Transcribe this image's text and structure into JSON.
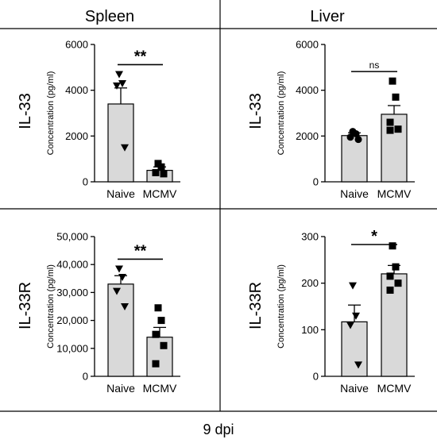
{
  "figure": {
    "columns": [
      "Spleen",
      "Liver"
    ],
    "rows": [
      "IL-33",
      "IL-33R"
    ],
    "footer": "9 dpi",
    "colors": {
      "bar": "#d9d9d9",
      "ink": "#000000"
    }
  },
  "chart_data": [
    {
      "type": "bar",
      "row_label": "IL-33",
      "column_label": "Spleen",
      "ylabel": "Concentration (pg/ml)",
      "categories": [
        "Naive",
        "MCMV"
      ],
      "values": [
        3400,
        500
      ],
      "sem": [
        700,
        150
      ],
      "points": [
        [
          4700,
          4300,
          4200,
          1500
        ],
        [
          800,
          650,
          400,
          350
        ]
      ],
      "markers": [
        "triangle-down",
        "square"
      ],
      "ylim": [
        0,
        6000
      ],
      "yticks": [
        0,
        2000,
        4000,
        6000
      ],
      "ytick_labels": [
        "0",
        "2000",
        "4000",
        "6000"
      ],
      "significance": "**"
    },
    {
      "type": "bar",
      "row_label": "IL-33",
      "column_label": "Liver",
      "ylabel": "Concentration (pg/ml)",
      "categories": [
        "Naive",
        "MCMV"
      ],
      "values": [
        2020,
        2950
      ],
      "sem": [
        120,
        380
      ],
      "points": [
        [
          2200,
          2100,
          1950,
          1850
        ],
        [
          4400,
          3700,
          2600,
          2300,
          2250
        ]
      ],
      "markers": [
        "circle",
        "square"
      ],
      "ylim": [
        0,
        6000
      ],
      "yticks": [
        0,
        2000,
        4000,
        6000
      ],
      "ytick_labels": [
        "0",
        "2000",
        "4000",
        "6000"
      ],
      "significance": "ns"
    },
    {
      "type": "bar",
      "row_label": "IL-33R",
      "column_label": "Spleen",
      "ylabel": "Concentration (pg/ml)",
      "categories": [
        "Naive",
        "MCMV"
      ],
      "values": [
        33000,
        14000
      ],
      "sem": [
        3000,
        3500
      ],
      "points": [
        [
          38500,
          35500,
          30500,
          25000
        ],
        [
          24500,
          20000,
          15000,
          11000,
          4500
        ]
      ],
      "markers": [
        "triangle-down",
        "square"
      ],
      "ylim": [
        0,
        50000
      ],
      "yticks": [
        0,
        10000,
        20000,
        30000,
        40000,
        50000
      ],
      "ytick_labels": [
        "0",
        "10,000",
        "20,000",
        "30,000",
        "40,000",
        "50,000"
      ],
      "significance": "**"
    },
    {
      "type": "bar",
      "row_label": "IL-33R",
      "column_label": "Liver",
      "ylabel": "Concentration (pg/ml)",
      "categories": [
        "Naive",
        "MCMV"
      ],
      "values": [
        117,
        220
      ],
      "sem": [
        36,
        18
      ],
      "points": [
        [
          195,
          130,
          110,
          25
        ],
        [
          280,
          235,
          215,
          200,
          185
        ]
      ],
      "markers": [
        "triangle-down",
        "square"
      ],
      "ylim": [
        0,
        300
      ],
      "yticks": [
        0,
        100,
        200,
        300
      ],
      "ytick_labels": [
        "0",
        "100",
        "200",
        "300"
      ],
      "significance": "*"
    }
  ]
}
